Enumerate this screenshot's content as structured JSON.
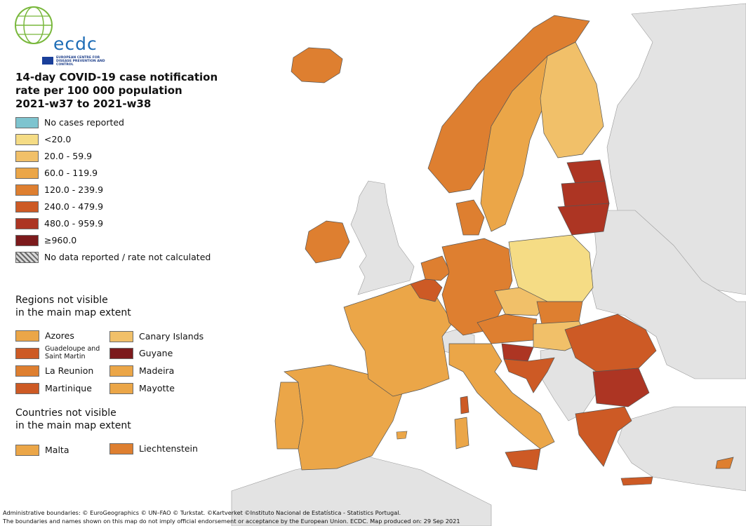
{
  "logo": {
    "name": "ecdc",
    "subtitle": "EUROPEAN CENTRE FOR DISEASE PREVENTION AND CONTROL"
  },
  "title": {
    "line1": "14-day COVID-19 case notification",
    "line2": "rate per 100 000 population",
    "line3": "2021-w37 to 2021-w38"
  },
  "legend": [
    {
      "label": "No cases reported",
      "color": "#7ec4cf"
    },
    {
      "label": "<20.0",
      "color": "#f5dc85"
    },
    {
      "label": "20.0 - 59.9",
      "color": "#f1c069"
    },
    {
      "label": "60.0 - 119.9",
      "color": "#eba648"
    },
    {
      "label": "120.0 - 239.9",
      "color": "#de7f30"
    },
    {
      "label": "240.0 - 479.9",
      "color": "#cd5a25"
    },
    {
      "label": "480.0 - 959.9",
      "color": "#ad3523"
    },
    {
      "label": "≥960.0",
      "color": "#7c1a1c"
    },
    {
      "label": "No data reported / rate not calculated",
      "color": "hatched"
    }
  ],
  "regions_heading": {
    "line1": "Regions not visible",
    "line2": "in the main map extent"
  },
  "regions": [
    {
      "label": "Azores",
      "color": "#eba648"
    },
    {
      "label": "Guadeloupe and Saint Martin",
      "color": "#cd5a25"
    },
    {
      "label": "La Reunion",
      "color": "#de7f30"
    },
    {
      "label": "Martinique",
      "color": "#cd5a25"
    },
    {
      "label": "Canary Islands",
      "color": "#f1c069"
    },
    {
      "label": "Guyane",
      "color": "#7c1a1c"
    },
    {
      "label": "Madeira",
      "color": "#eba648"
    },
    {
      "label": "Mayotte",
      "color": "#eba648"
    }
  ],
  "countries_heading": {
    "line1": "Countries not visible",
    "line2": "in the main map extent"
  },
  "countries": [
    {
      "label": "Malta",
      "color": "#eba648"
    },
    {
      "label": "Liechtenstein",
      "color": "#de7f30"
    }
  ],
  "footer": {
    "line1": "Administrative boundaries: © EuroGeographics © UN–FAO © Turkstat. ©Kartverket ©Instituto Nacional de Estatística - Statistics Portugal.",
    "line2": "The boundaries and names shown on this map do not imply official endorsement or acceptance by the European Union. ECDC. Map produced on: 29 Sep 2021"
  },
  "map": {
    "non_eu_color": "#e3e3e3",
    "sea_color": "#ffffff",
    "regions": [
      {
        "name": "Iceland",
        "color": "#de7f30"
      },
      {
        "name": "Ireland",
        "color": "#de7f30"
      },
      {
        "name": "Portugal",
        "color": "#eba648"
      },
      {
        "name": "Spain",
        "color": "#eba648"
      },
      {
        "name": "France",
        "color": "#eba648"
      },
      {
        "name": "Belgium",
        "color": "#cd5a25"
      },
      {
        "name": "Netherlands",
        "color": "#de7f30"
      },
      {
        "name": "Germany",
        "color": "#de7f30"
      },
      {
        "name": "Denmark",
        "color": "#de7f30"
      },
      {
        "name": "Norway",
        "color": "#de7f30"
      },
      {
        "name": "Sweden",
        "color": "#eba648"
      },
      {
        "name": "Finland",
        "color": "#f1c069"
      },
      {
        "name": "Estonia",
        "color": "#ad3523"
      },
      {
        "name": "Latvia",
        "color": "#ad3523"
      },
      {
        "name": "Lithuania",
        "color": "#ad3523"
      },
      {
        "name": "Poland",
        "color": "#f5dc85"
      },
      {
        "name": "Czechia",
        "color": "#f1c069"
      },
      {
        "name": "Slovakia",
        "color": "#de7f30"
      },
      {
        "name": "Austria",
        "color": "#de7f30"
      },
      {
        "name": "Hungary",
        "color": "#f1c069"
      },
      {
        "name": "Slovenia",
        "color": "#ad3523"
      },
      {
        "name": "Croatia",
        "color": "#cd5a25"
      },
      {
        "name": "Romania",
        "color": "#cd5a25"
      },
      {
        "name": "Bulgaria",
        "color": "#ad3523"
      },
      {
        "name": "Greece",
        "color": "#cd5a25"
      },
      {
        "name": "Italy",
        "color": "#eba648"
      },
      {
        "name": "Sardinia",
        "color": "#eba648"
      },
      {
        "name": "Corsica",
        "color": "#cd5a25"
      },
      {
        "name": "Sicily",
        "color": "#cd5a25"
      },
      {
        "name": "Cyprus",
        "color": "#de7f30"
      },
      {
        "name": "Switzerland",
        "color": "#e3e3e3"
      },
      {
        "name": "United Kingdom",
        "color": "#e3e3e3"
      }
    ]
  }
}
